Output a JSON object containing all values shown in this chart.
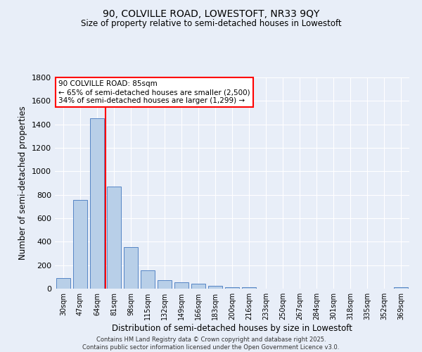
{
  "title1": "90, COLVILLE ROAD, LOWESTOFT, NR33 9QY",
  "title2": "Size of property relative to semi-detached houses in Lowestoft",
  "xlabel": "Distribution of semi-detached houses by size in Lowestoft",
  "ylabel": "Number of semi-detached properties",
  "categories": [
    "30sqm",
    "47sqm",
    "64sqm",
    "81sqm",
    "98sqm",
    "115sqm",
    "132sqm",
    "149sqm",
    "166sqm",
    "183sqm",
    "200sqm",
    "216sqm",
    "233sqm",
    "250sqm",
    "267sqm",
    "284sqm",
    "301sqm",
    "318sqm",
    "335sqm",
    "352sqm",
    "369sqm"
  ],
  "values": [
    88,
    755,
    1455,
    868,
    355,
    155,
    75,
    55,
    42,
    22,
    12,
    10,
    2,
    1,
    1,
    0,
    0,
    0,
    0,
    0,
    12
  ],
  "bar_color": "#b8cfe8",
  "bar_edge_color": "#5585c5",
  "vline_color": "red",
  "vline_x_index": 3,
  "annotation_title": "90 COLVILLE ROAD: 85sqm",
  "annotation_line1": "← 65% of semi-detached houses are smaller (2,500)",
  "annotation_line2": "34% of semi-detached houses are larger (1,299) →",
  "annotation_box_color": "white",
  "annotation_box_edge": "red",
  "ylim": [
    0,
    1800
  ],
  "yticks": [
    0,
    200,
    400,
    600,
    800,
    1000,
    1200,
    1400,
    1600,
    1800
  ],
  "footer1": "Contains HM Land Registry data © Crown copyright and database right 2025.",
  "footer2": "Contains public sector information licensed under the Open Government Licence v3.0.",
  "bg_color": "#e8eef8",
  "grid_color": "white"
}
